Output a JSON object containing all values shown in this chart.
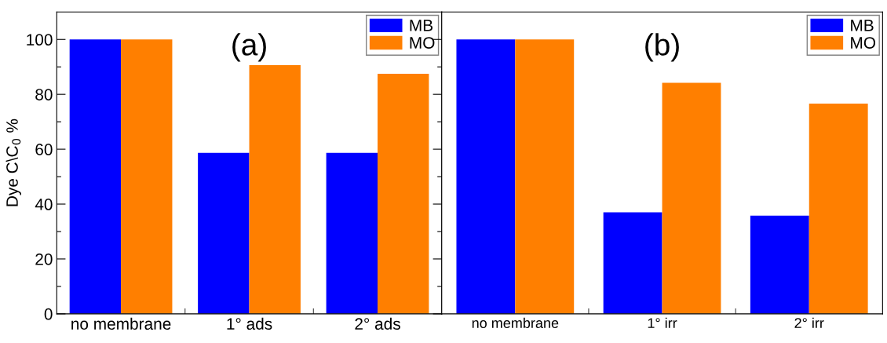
{
  "chart_data": [
    {
      "type": "bar",
      "title": "(a)",
      "ylabel": "Dye C\\C$_{0}$ %",
      "categories": [
        "no membrane",
        "1° ads",
        "2° ads"
      ],
      "series": [
        {
          "name": "MB",
          "color": "#0000ff",
          "values": [
            100,
            58.7,
            58.7
          ]
        },
        {
          "name": "MO",
          "color": "#ff7f00",
          "values": [
            100,
            90.6,
            87.5
          ]
        }
      ],
      "ylim": [
        0,
        110
      ],
      "yticks": [
        0,
        {
          "value": 10,
          "label": null
        },
        20,
        {
          "value": 30,
          "label": null
        },
        40,
        {
          "value": 50,
          "label": null
        },
        60,
        {
          "value": 70,
          "label": null
        },
        80,
        {
          "value": 90,
          "label": null
        },
        100
      ],
      "legend": "top right",
      "grid": false
    },
    {
      "type": "bar",
      "title": "(b)",
      "categories": [
        "no membrane",
        "1° irr",
        "2° irr"
      ],
      "series": [
        {
          "name": "MB",
          "color": "#0000ff",
          "values": [
            100,
            37.0,
            35.8
          ]
        },
        {
          "name": "MO",
          "color": "#ff7f00",
          "values": [
            100,
            84.2,
            76.6
          ]
        }
      ],
      "ylim": [
        0,
        110
      ],
      "yticks": [
        0,
        {
          "value": 10,
          "label": null
        },
        20,
        {
          "value": 30,
          "label": null
        },
        40,
        {
          "value": 50,
          "label": null
        },
        60,
        {
          "value": 70,
          "label": null
        },
        80,
        {
          "value": 90,
          "label": null
        },
        100
      ],
      "legend": "top right",
      "grid": false,
      "tick_labels": "x"
    }
  ]
}
